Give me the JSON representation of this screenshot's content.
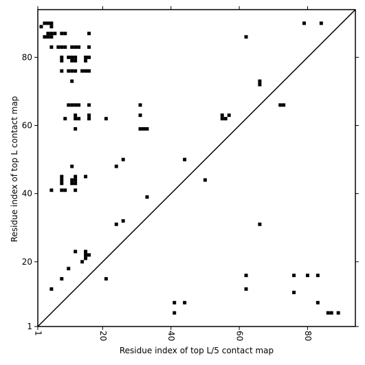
{
  "chart_data": {
    "type": "scatter",
    "xlabel": "Residue index of top L/5 contact map",
    "ylabel": "Residue index of top L contact map",
    "xlim": [
      1,
      94
    ],
    "ylim": [
      1,
      94
    ],
    "xticks": [
      1,
      20,
      40,
      60,
      80
    ],
    "yticks": [
      1,
      20,
      40,
      60,
      80
    ],
    "xtick_labels": [
      "1",
      "20",
      "40",
      "60",
      "80"
    ],
    "ytick_labels": [
      "1",
      "20",
      "40",
      "60",
      "80"
    ],
    "diagonal": true,
    "grid": false,
    "marker": "square",
    "color": "#000000",
    "upper_left_points": [
      [
        2,
        89
      ],
      [
        3,
        90
      ],
      [
        4,
        90
      ],
      [
        5,
        90
      ],
      [
        5,
        89
      ],
      [
        3,
        86
      ],
      [
        4,
        86
      ],
      [
        4,
        87
      ],
      [
        5,
        87
      ],
      [
        6,
        87
      ],
      [
        5,
        86
      ],
      [
        8,
        87
      ],
      [
        9,
        87
      ],
      [
        16,
        87
      ],
      [
        5,
        83
      ],
      [
        7,
        83
      ],
      [
        8,
        83
      ],
      [
        9,
        83
      ],
      [
        11,
        83
      ],
      [
        12,
        83
      ],
      [
        13,
        83
      ],
      [
        16,
        83
      ],
      [
        8,
        80
      ],
      [
        8,
        79
      ],
      [
        10,
        80
      ],
      [
        11,
        80
      ],
      [
        11,
        79
      ],
      [
        12,
        80
      ],
      [
        12,
        79
      ],
      [
        15,
        80
      ],
      [
        16,
        80
      ],
      [
        15,
        79
      ],
      [
        8,
        76
      ],
      [
        10,
        76
      ],
      [
        11,
        76
      ],
      [
        12,
        76
      ],
      [
        14,
        76
      ],
      [
        15,
        76
      ],
      [
        16,
        76
      ],
      [
        11,
        73
      ],
      [
        10,
        66
      ],
      [
        11,
        66
      ],
      [
        12,
        66
      ],
      [
        13,
        66
      ],
      [
        16,
        66
      ],
      [
        31,
        66
      ],
      [
        12,
        63
      ],
      [
        16,
        63
      ],
      [
        31,
        63
      ],
      [
        9,
        62
      ],
      [
        12,
        62
      ],
      [
        13,
        62
      ],
      [
        16,
        62
      ],
      [
        21,
        62
      ],
      [
        12,
        59
      ],
      [
        31,
        59
      ],
      [
        32,
        59
      ],
      [
        33,
        59
      ],
      [
        55,
        63
      ],
      [
        55,
        62
      ],
      [
        56,
        62
      ],
      [
        57,
        63
      ],
      [
        62,
        86
      ],
      [
        66,
        73
      ],
      [
        66,
        72
      ],
      [
        72,
        66
      ],
      [
        73,
        66
      ],
      [
        79,
        90
      ],
      [
        84,
        90
      ],
      [
        26,
        50
      ],
      [
        44,
        50
      ],
      [
        24,
        48
      ],
      [
        11,
        48
      ],
      [
        15,
        45
      ],
      [
        8,
        45
      ],
      [
        8,
        44
      ],
      [
        8,
        43
      ],
      [
        11,
        44
      ],
      [
        11,
        43
      ],
      [
        12,
        44
      ],
      [
        12,
        43
      ],
      [
        12,
        45
      ],
      [
        5,
        41
      ],
      [
        8,
        41
      ],
      [
        9,
        41
      ],
      [
        12,
        41
      ],
      [
        33,
        39
      ]
    ],
    "lower_right_points": [
      [
        50,
        44
      ],
      [
        24,
        31
      ],
      [
        26,
        32
      ],
      [
        66,
        31
      ],
      [
        12,
        23
      ],
      [
        15,
        23
      ],
      [
        15,
        22
      ],
      [
        16,
        22
      ],
      [
        15,
        21
      ],
      [
        14,
        20
      ],
      [
        10,
        18
      ],
      [
        5,
        12
      ],
      [
        8,
        15
      ],
      [
        21,
        15
      ],
      [
        62,
        16
      ],
      [
        62,
        12
      ],
      [
        76,
        16
      ],
      [
        80,
        16
      ],
      [
        83,
        16
      ],
      [
        76,
        11
      ],
      [
        41,
        8
      ],
      [
        44,
        8
      ],
      [
        83,
        8
      ],
      [
        41,
        5
      ],
      [
        86,
        5
      ],
      [
        87,
        5
      ],
      [
        89,
        5
      ]
    ]
  }
}
